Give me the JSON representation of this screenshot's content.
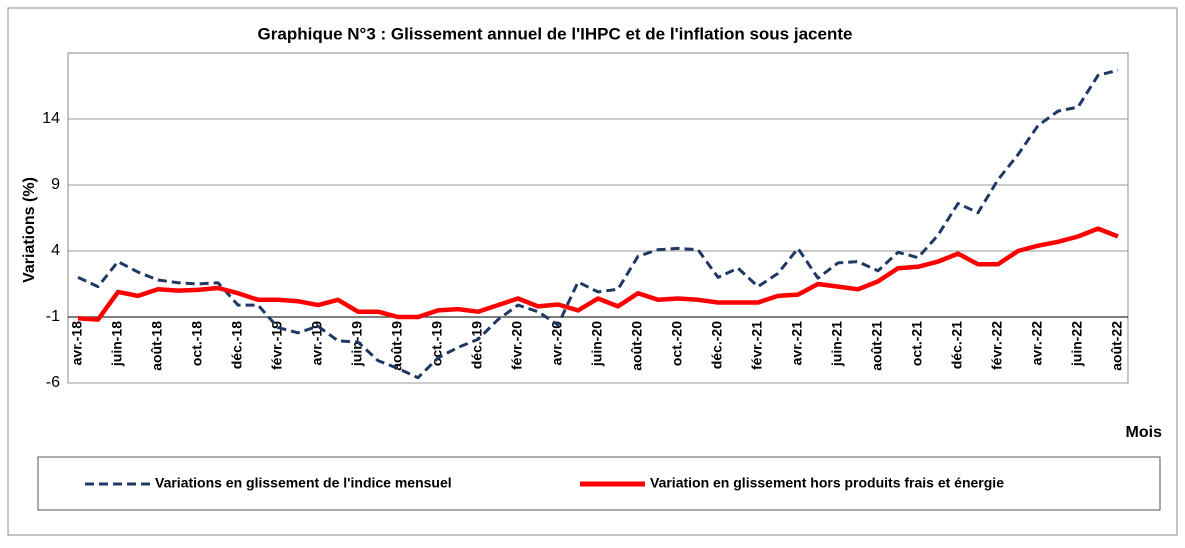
{
  "chart_data": {
    "type": "line",
    "title": "Graphique N°3 : Glissement annuel de l'IHPC et de l'inflation sous jacente",
    "y_label": "Variations (%)",
    "x_label": "Mois",
    "categories": [
      "avr.-18",
      null,
      "juin-18",
      null,
      "août-18",
      null,
      "oct.-18",
      null,
      "déc.-18",
      null,
      "févr.-19",
      null,
      "avr.-19",
      null,
      "juin-19",
      null,
      "août-19",
      null,
      "oct.-19",
      null,
      "déc.-19",
      null,
      "févr.-20",
      null,
      "avr.-20",
      null,
      "juin-20",
      null,
      "août-20",
      null,
      "oct.-20",
      null,
      "déc.-20",
      null,
      "févr.-21",
      null,
      "avr.-21",
      null,
      "juin-21",
      null,
      "août-21",
      null,
      "oct.-21",
      null,
      "déc.-21",
      null,
      "févr.-22",
      null,
      "avr.-22",
      null,
      "juin-22",
      null,
      "août-22"
    ],
    "series": [
      {
        "name": "Variations en glissement de l'indice mensuel",
        "color": "#1f3864",
        "dash": true,
        "values": [
          2.0,
          1.3,
          3.2,
          2.4,
          1.8,
          1.6,
          1.5,
          1.6,
          -0.1,
          -0.1,
          -1.8,
          -2.2,
          -1.7,
          -2.8,
          -2.9,
          -4.3,
          -4.9,
          -5.6,
          -4.1,
          -3.3,
          -2.7,
          -1.2,
          -0.1,
          -0.6,
          -1.6,
          1.65,
          0.9,
          1.1,
          3.6,
          4.1,
          4.2,
          4.1,
          2.0,
          2.7,
          1.3,
          2.3,
          4.2,
          1.95,
          3.1,
          3.2,
          2.5,
          3.9,
          3.5,
          5.2,
          7.6,
          6.9,
          9.4,
          11.3,
          13.5,
          14.6,
          14.9,
          17.3,
          17.7
        ]
      },
      {
        "name": "Variation en glissement hors produits frais et énergie",
        "color": "#ff0000",
        "dash": false,
        "values": [
          -1.1,
          -1.2,
          0.9,
          0.6,
          1.1,
          1.0,
          1.05,
          1.2,
          0.8,
          0.3,
          0.3,
          0.2,
          -0.1,
          0.3,
          -0.6,
          -0.6,
          -1.0,
          -1.0,
          -0.5,
          -0.4,
          -0.6,
          -0.1,
          0.4,
          -0.2,
          -0.05,
          -0.5,
          0.4,
          -0.2,
          0.8,
          0.3,
          0.4,
          0.3,
          0.1,
          0.1,
          0.1,
          0.6,
          0.7,
          1.5,
          1.3,
          1.1,
          1.7,
          2.7,
          2.8,
          3.2,
          3.8,
          3.0,
          3.0,
          4.0,
          4.4,
          4.7,
          5.1,
          5.7,
          5.1
        ]
      }
    ],
    "ylim": [
      -6,
      19
    ],
    "yticks": [
      -6,
      -1,
      4,
      9,
      14
    ],
    "grid": true
  }
}
